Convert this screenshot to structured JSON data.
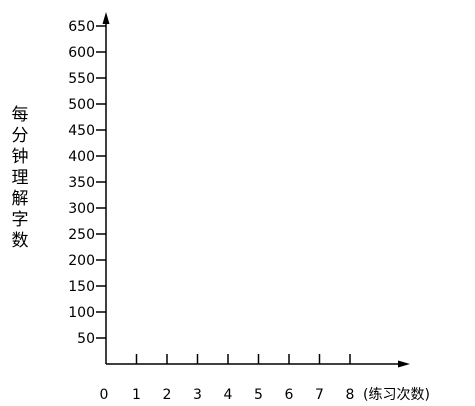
{
  "chart_data": {
    "type": "line",
    "title": "",
    "ylabel": "每分钟理解字数",
    "xlabel": "(练习次数)",
    "x_ticks": [
      "0",
      "1",
      "2",
      "3",
      "4",
      "5",
      "6",
      "7",
      "8"
    ],
    "y_ticks": [
      "50",
      "100",
      "150",
      "200",
      "250",
      "300",
      "350",
      "400",
      "450",
      "500",
      "550",
      "600",
      "650"
    ],
    "xlim": [
      0,
      8
    ],
    "ylim": [
      0,
      650
    ],
    "grid": false,
    "series": []
  }
}
